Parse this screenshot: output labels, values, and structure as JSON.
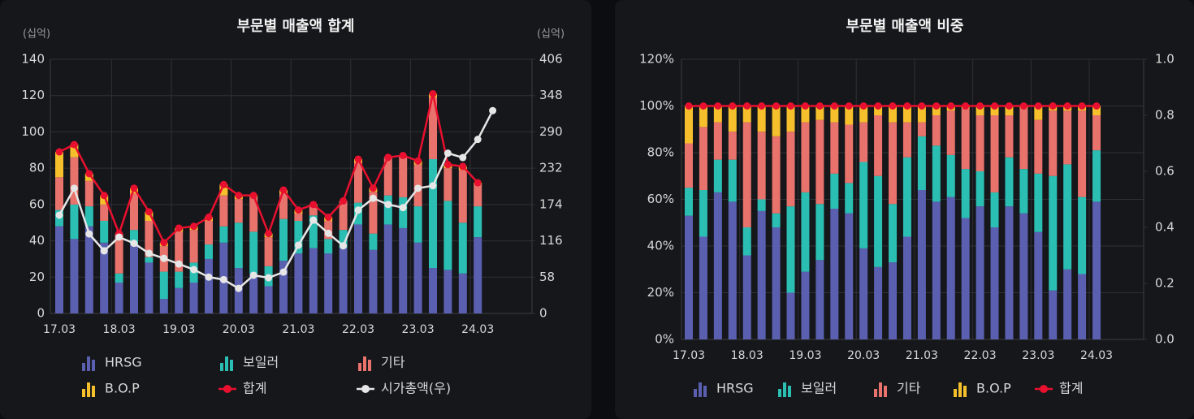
{
  "chart_data": [
    {
      "type": "bar",
      "stacked": true,
      "title": "부문별 매출액 합계",
      "ylabel": "(십억)",
      "y2label": "(십억)",
      "categories": [
        "17.03",
        null,
        null,
        null,
        "18.03",
        null,
        null,
        null,
        "19.03",
        null,
        null,
        null,
        "20.03",
        null,
        null,
        null,
        "21.03",
        null,
        null,
        null,
        "22.03",
        null,
        null,
        null,
        "23.03",
        null,
        null,
        null,
        "24.03",
        null
      ],
      "ylim": [
        0,
        140
      ],
      "yticks": [
        0,
        20,
        40,
        60,
        80,
        100,
        120,
        140
      ],
      "y2lim": [
        0,
        406
      ],
      "y2ticks": [
        0,
        58,
        116,
        174,
        232,
        290,
        348,
        406
      ],
      "grid": true,
      "legend": "bottom",
      "series": [
        {
          "name": "HRSG",
          "type": "bar",
          "color": "#5b5fb0",
          "values": [
            48,
            41,
            48,
            39,
            17,
            38,
            28,
            8,
            14,
            17,
            30,
            39,
            25,
            22,
            15,
            29,
            33,
            36,
            33,
            36,
            49,
            35,
            49,
            47,
            39,
            25,
            24,
            22,
            42,
            null
          ]
        },
        {
          "name": "보일러",
          "type": "bar",
          "color": "#2bbfb3",
          "values": [
            9,
            19,
            11,
            12,
            5,
            8,
            3,
            15,
            9,
            11,
            8,
            9,
            25,
            23,
            11,
            23,
            18,
            18,
            8,
            10,
            12,
            9,
            16,
            17,
            20,
            60,
            38,
            28,
            17,
            null
          ]
        },
        {
          "name": "기타",
          "type": "bar",
          "color": "#e8726c",
          "values": [
            18,
            26,
            14,
            9,
            22,
            20,
            20,
            14,
            22,
            18,
            13,
            17,
            13,
            19,
            16,
            14,
            4,
            5,
            10,
            16,
            22,
            23,
            21,
            23,
            23,
            34,
            18,
            29,
            12,
            null
          ]
        },
        {
          "name": "B.O.P",
          "type": "bar",
          "color": "#f5c02c",
          "values": [
            14,
            7,
            4,
            5,
            0,
            3,
            5,
            2,
            2,
            2,
            2,
            6,
            2,
            1,
            2,
            2,
            2,
            1,
            2,
            0,
            2,
            2,
            0,
            0,
            2,
            2,
            2,
            2,
            1,
            null
          ]
        },
        {
          "name": "합계",
          "type": "line",
          "color": "#e8102e",
          "values": [
            89,
            93,
            77,
            65,
            44,
            69,
            56,
            39,
            47,
            48,
            53,
            71,
            65,
            65,
            44,
            68,
            57,
            60,
            53,
            62,
            85,
            69,
            86,
            87,
            84,
            121,
            82,
            81,
            72,
            null
          ]
        },
        {
          "name": "시가총액(우)",
          "type": "line",
          "axis": "y2",
          "color": "#e6e6e6",
          "values": [
            157,
            200,
            127,
            100,
            122,
            112,
            96,
            88,
            79,
            70,
            58,
            54,
            40,
            61,
            57,
            66,
            109,
            149,
            128,
            108,
            165,
            184,
            174,
            169,
            200,
            204,
            256,
            249,
            278,
            324
          ]
        }
      ]
    },
    {
      "type": "bar",
      "stacked": true,
      "title": "부문별 매출액 비중",
      "categories": [
        "17.03",
        null,
        null,
        null,
        "18.03",
        null,
        null,
        null,
        "19.03",
        null,
        null,
        null,
        "20.03",
        null,
        null,
        null,
        "21.03",
        null,
        null,
        null,
        "22.03",
        null,
        null,
        null,
        "23.03",
        null,
        null,
        null,
        "24.03"
      ],
      "ylim": [
        0,
        120
      ],
      "yticks": [
        {
          "value": 0,
          "label": "0%"
        },
        {
          "value": 20,
          "label": "20%"
        },
        {
          "value": 40,
          "label": "40%"
        },
        {
          "value": 60,
          "label": "60%"
        },
        {
          "value": 80,
          "label": "80%"
        },
        {
          "value": 100,
          "label": "100%"
        },
        {
          "value": 120,
          "label": "120%"
        }
      ],
      "y2lim": [
        0,
        1
      ],
      "y2ticks": [
        {
          "value": 0,
          "label": "0.0"
        },
        0.2,
        0.4,
        0.6,
        0.8,
        {
          "value": 1,
          "label": "1.0"
        }
      ],
      "grid": true,
      "legend": "bottom",
      "series": [
        {
          "name": "HRSG",
          "type": "bar",
          "color": "#5b5fb0",
          "values": [
            53,
            44,
            63,
            59,
            36,
            55,
            48,
            20,
            29,
            34,
            56,
            54,
            39,
            31,
            33,
            44,
            64,
            59,
            61,
            52,
            57,
            48,
            57,
            54,
            46,
            21,
            30,
            28,
            59
          ]
        },
        {
          "name": "보일러",
          "type": "bar",
          "color": "#2bbfb3",
          "values": [
            12,
            20,
            14,
            18,
            12,
            5,
            6,
            37,
            34,
            24,
            15,
            13,
            37,
            39,
            25,
            34,
            23,
            24,
            18,
            21,
            15,
            15,
            21,
            19,
            25,
            49,
            45,
            33,
            22
          ]
        },
        {
          "name": "기타",
          "type": "bar",
          "color": "#e8726c",
          "values": [
            19,
            27,
            16,
            12,
            45,
            29,
            33,
            32,
            30,
            36,
            22,
            25,
            17,
            26,
            35,
            15,
            6,
            13,
            19,
            26,
            24,
            33,
            18,
            26,
            23,
            28,
            23,
            37,
            15
          ]
        },
        {
          "name": "B.O.P",
          "type": "bar",
          "color": "#f5c02c",
          "values": [
            16,
            9,
            7,
            11,
            7,
            11,
            13,
            11,
            7,
            6,
            7,
            8,
            7,
            4,
            7,
            7,
            7,
            4,
            2,
            1,
            4,
            4,
            4,
            1,
            6,
            2,
            2,
            2,
            4
          ]
        },
        {
          "name": "합계",
          "type": "line",
          "color": "#e8102e",
          "values": [
            100,
            100,
            100,
            100,
            100,
            100,
            100,
            100,
            100,
            100,
            100,
            100,
            100,
            100,
            100,
            100,
            100,
            100,
            100,
            100,
            100,
            100,
            100,
            100,
            100,
            100,
            100,
            100,
            100
          ]
        }
      ]
    }
  ]
}
